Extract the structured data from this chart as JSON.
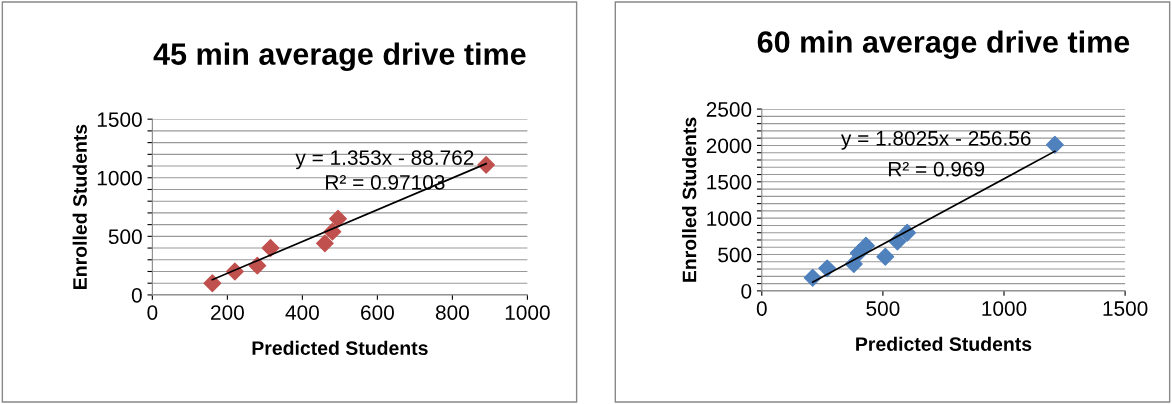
{
  "chart_data": [
    {
      "type": "scatter",
      "title": "45 min average drive time",
      "xlabel": "Predicted Students",
      "ylabel": "Enrolled Students",
      "xlim": [
        0,
        1000
      ],
      "xticks": [
        0,
        200,
        400,
        600,
        800,
        1000
      ],
      "ylim": [
        0,
        1500
      ],
      "yticks": [
        0,
        {
          "value": 100,
          "label": null
        },
        {
          "value": 200,
          "label": null
        },
        {
          "value": 300,
          "label": null
        },
        {
          "value": 400,
          "label": null
        },
        500,
        {
          "value": 600,
          "label": null
        },
        {
          "value": 700,
          "label": null
        },
        {
          "value": 800,
          "label": null
        },
        {
          "value": 900,
          "label": null
        },
        1000,
        {
          "value": 1100,
          "label": null
        },
        {
          "value": 1200,
          "label": null
        },
        {
          "value": 1300,
          "label": null
        },
        {
          "value": 1400,
          "label": null
        },
        1500
      ],
      "grid": "y",
      "marker": "diamond",
      "series": [
        {
          "color": "#c0504d",
          "x": [
            160,
            220,
            280,
            315,
            460,
            480,
            495,
            890
          ],
          "values": [
            100,
            200,
            250,
            400,
            440,
            540,
            650,
            1110
          ]
        },
        {
          "type": "line",
          "color": "#000000",
          "marker": "none",
          "x": [
            160,
            890
          ],
          "values": [
            130,
            1120
          ]
        }
      ],
      "annotations": [
        "y = 1.353x - 88.762",
        "R² = 0.97103"
      ]
    },
    {
      "type": "scatter",
      "title": "60 min average drive time",
      "xlabel": "Predicted Students",
      "ylabel": "Enrolled Students",
      "xlim": [
        0,
        1500
      ],
      "xticks": [
        0,
        500,
        1000,
        1500
      ],
      "ylim": [
        0,
        2500
      ],
      "yticks": [
        0,
        {
          "value": 100,
          "label": null
        },
        {
          "value": 200,
          "label": null
        },
        {
          "value": 300,
          "label": null
        },
        {
          "value": 400,
          "label": null
        },
        500,
        {
          "value": 600,
          "label": null
        },
        {
          "value": 700,
          "label": null
        },
        {
          "value": 800,
          "label": null
        },
        {
          "value": 900,
          "label": null
        },
        1000,
        {
          "value": 1100,
          "label": null
        },
        {
          "value": 1200,
          "label": null
        },
        {
          "value": 1300,
          "label": null
        },
        {
          "value": 1400,
          "label": null
        },
        1500,
        {
          "value": 1600,
          "label": null
        },
        {
          "value": 1700,
          "label": null
        },
        {
          "value": 1800,
          "label": null
        },
        {
          "value": 1900,
          "label": null
        },
        2000,
        {
          "value": 2100,
          "label": null
        },
        {
          "value": 2200,
          "label": null
        },
        {
          "value": 2300,
          "label": null
        },
        {
          "value": 2400,
          "label": null
        },
        2500
      ],
      "grid": "y",
      "marker": "diamond",
      "series": [
        {
          "color": "#4f81bd",
          "x": [
            210,
            270,
            380,
            400,
            430,
            510,
            560,
            600,
            1210
          ],
          "values": [
            180,
            310,
            370,
            520,
            620,
            470,
            680,
            800,
            2010
          ]
        },
        {
          "type": "line",
          "color": "#000000",
          "marker": "none",
          "x": [
            210,
            1210
          ],
          "values": [
            120,
            1920
          ]
        }
      ],
      "annotations": [
        "y = 1.8025x - 256.56",
        "R² = 0.969"
      ]
    }
  ]
}
